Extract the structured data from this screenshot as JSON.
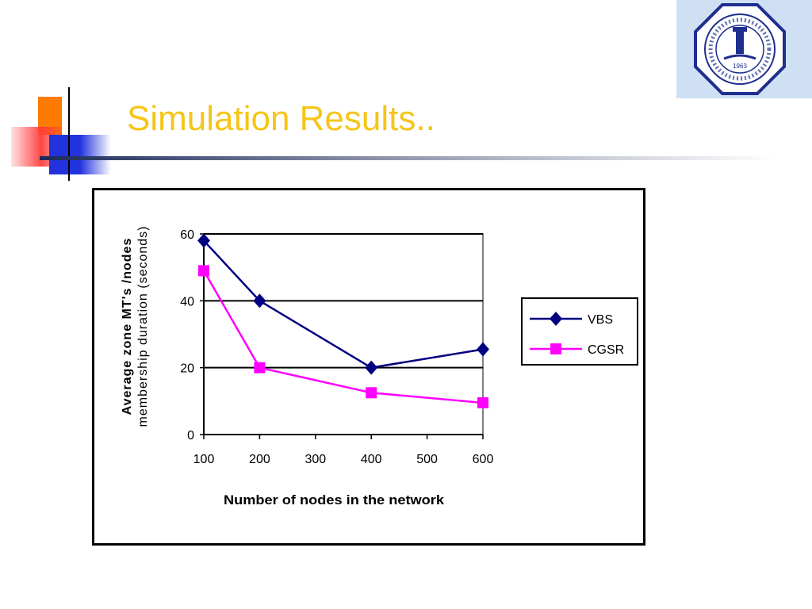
{
  "slide": {
    "title": "Simulation Results..",
    "title_color": "#F5C518",
    "logo_icon": "university-seal-icon",
    "logo_year": "1963",
    "logo_bg": "#CFE0F5",
    "logo_blue": "#1E2F8F"
  },
  "chart_data": {
    "type": "line",
    "title": "",
    "xlabel": "Number of nodes in the network",
    "ylabel": "Average zone MT's /nodes membership duration (seconds)",
    "ylabel_lines": [
      "Average zone MT's /nodes",
      "membership duration (seconds)"
    ],
    "xlim": [
      100,
      600
    ],
    "ylim": [
      0,
      60
    ],
    "x_ticks": [
      100,
      200,
      300,
      400,
      500,
      600
    ],
    "y_ticks": [
      0,
      20,
      40,
      60
    ],
    "grid": "horizontal",
    "legend_position": "right",
    "series": [
      {
        "name": "VBS",
        "color": "#000080",
        "marker": "diamond",
        "x": [
          100,
          200,
          400,
          600
        ],
        "y": [
          58,
          40,
          20,
          25.5
        ]
      },
      {
        "name": "CGSR",
        "color": "#FF00FF",
        "marker": "square",
        "x": [
          100,
          200,
          400,
          600
        ],
        "y": [
          49,
          20,
          12.5,
          9.5
        ]
      }
    ]
  }
}
